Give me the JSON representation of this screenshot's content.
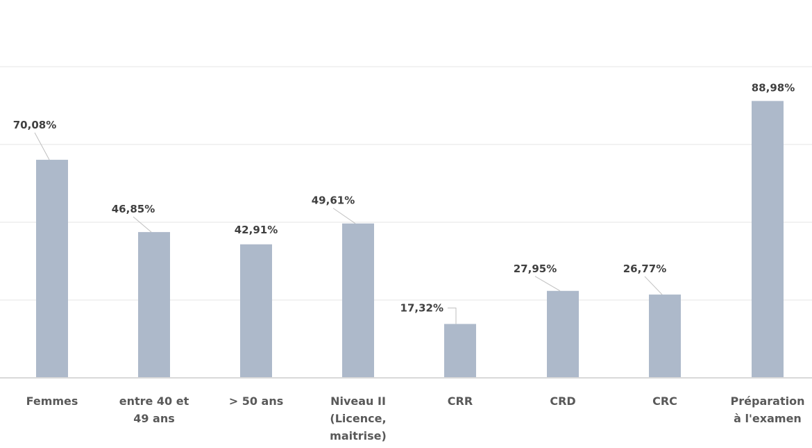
{
  "chart_data": {
    "type": "bar",
    "categories": [
      [
        "Femmes"
      ],
      [
        "entre  40 et",
        "49 ans"
      ],
      [
        "> 50 ans"
      ],
      [
        "Niveau II",
        "(Licence,",
        "maitrise)"
      ],
      [
        "CRR"
      ],
      [
        "CRD"
      ],
      [
        "CRC"
      ],
      [
        "Préparation",
        "à l'examen"
      ]
    ],
    "values": [
      70.08,
      46.85,
      42.91,
      49.61,
      17.32,
      27.95,
      26.77,
      88.98
    ],
    "data_labels": [
      "70,08%",
      "46,85%",
      "42,91%",
      "49,61%",
      "17,32%",
      "27,95%",
      "26,77%",
      "88,98%"
    ],
    "title": "",
    "xlabel": "",
    "ylabel": "",
    "ylim": [
      0,
      100
    ],
    "grid": true,
    "bar_color": "#adb9ca",
    "grid_color": "#f2f2f2"
  }
}
